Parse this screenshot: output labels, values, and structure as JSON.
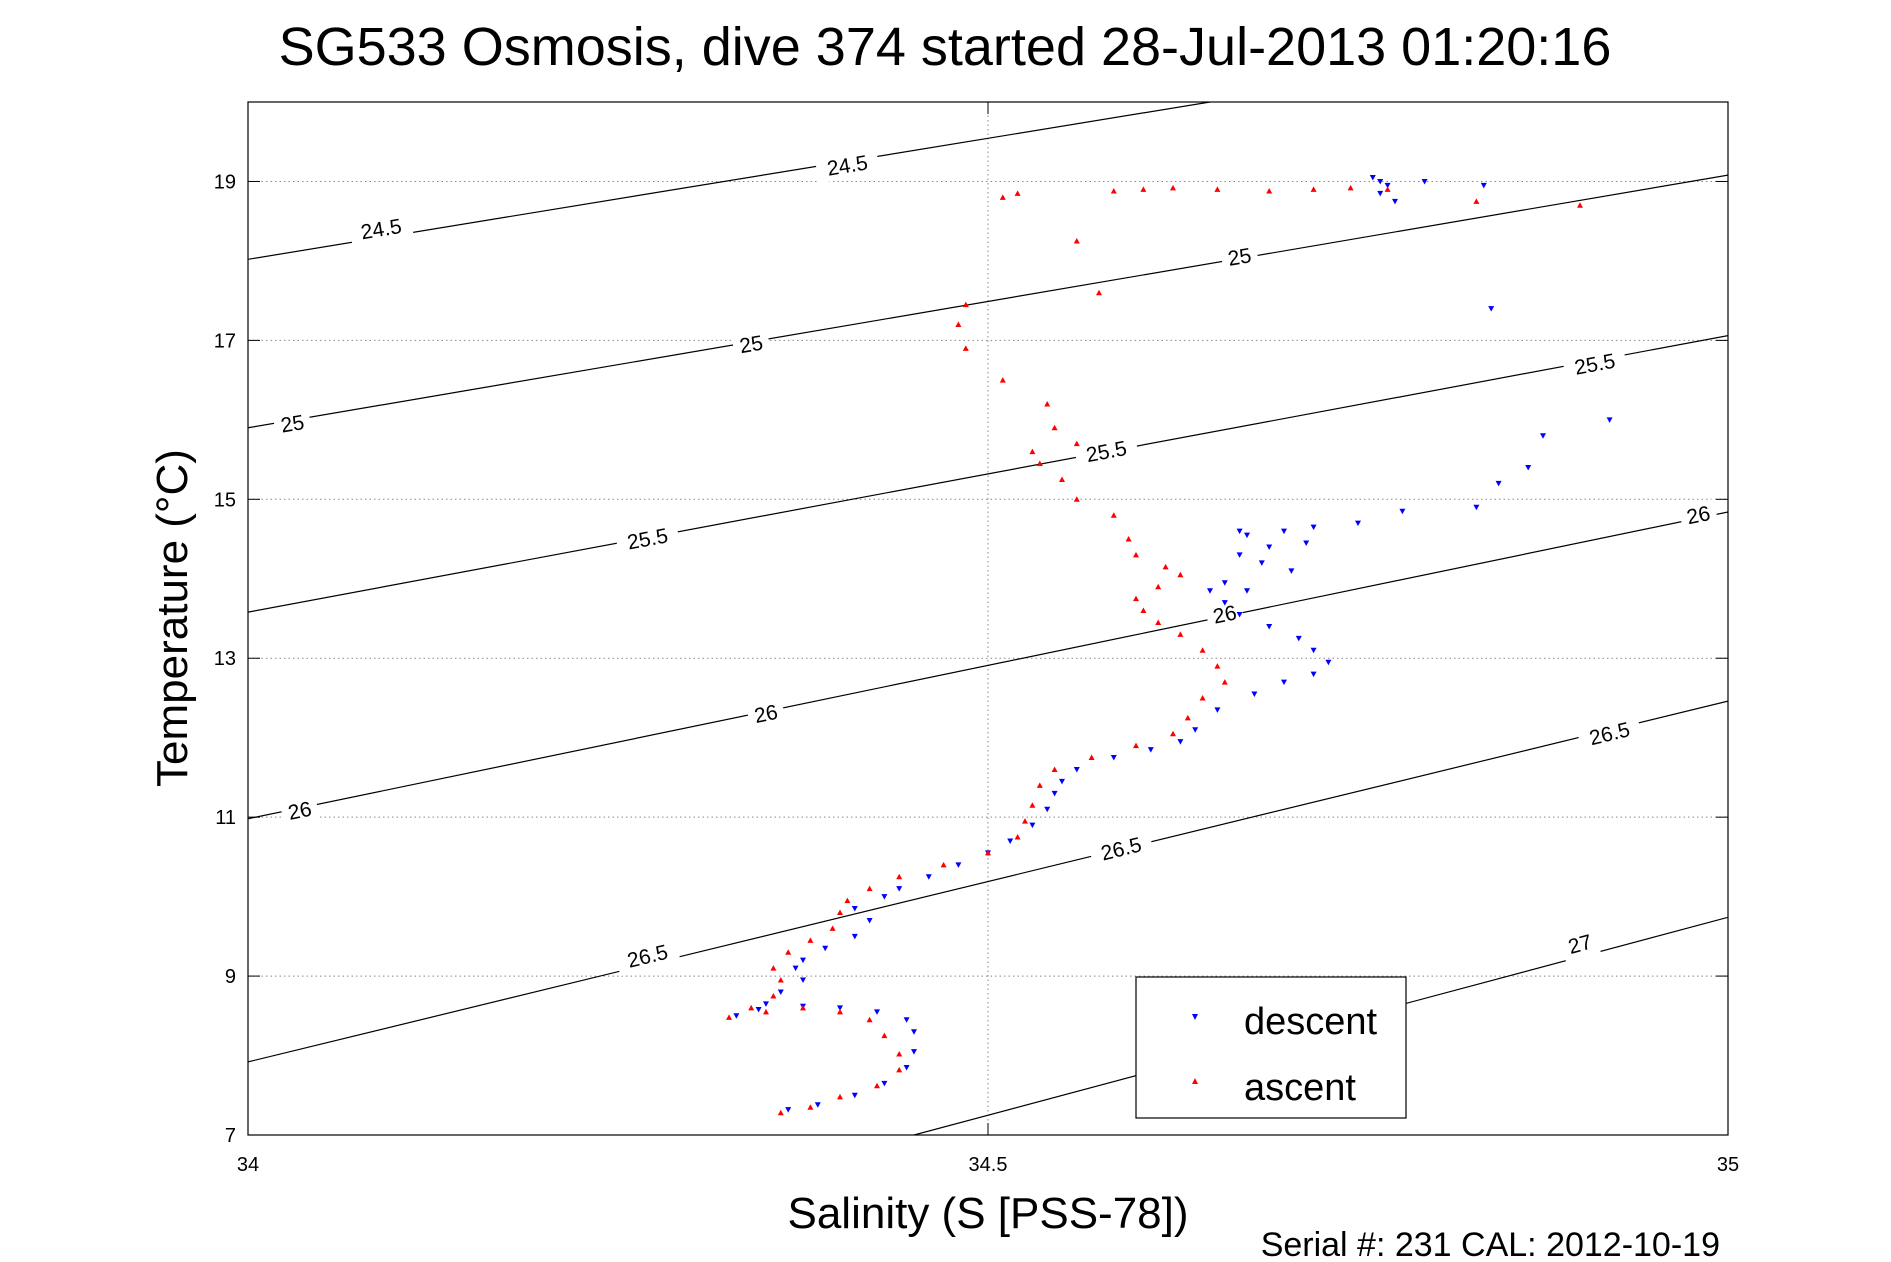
{
  "chart_data": {
    "type": "scatter",
    "title": "SG533 Osmosis, dive 374 started 28-Jul-2013 01:20:16",
    "xlabel": "Salinity (S [PSS-78])",
    "ylabel": "Temperature (°C)",
    "xlim": [
      34,
      35
    ],
    "ylim": [
      7,
      20
    ],
    "x_ticks": [
      34,
      34.5,
      35
    ],
    "x_tick_labels": [
      "34",
      "34.5",
      "35"
    ],
    "y_ticks": [
      7,
      9,
      11,
      13,
      15,
      17,
      19
    ],
    "y_tick_labels": [
      "7",
      "9",
      "11",
      "13",
      "15",
      "17",
      "19"
    ],
    "grid": "dotted",
    "legend": {
      "position": "bottom-right",
      "entries": [
        "descent",
        "ascent"
      ]
    },
    "footer": "Serial #: 231  CAL: 2012-10-19",
    "colors": {
      "descent": "#0000ff",
      "ascent": "#ff0000",
      "contour": "#000000"
    },
    "contours": [
      {
        "level": "24.5",
        "from": [
          34.0,
          18.02
        ],
        "to": [
          34.65,
          20.0
        ],
        "labels": [
          [
            34.09,
            18.4
          ],
          [
            34.405,
            19.2
          ]
        ]
      },
      {
        "level": "25",
        "from": [
          34.0,
          15.9
        ],
        "to": [
          35.0,
          19.08
        ],
        "labels": [
          [
            34.03,
            15.95
          ],
          [
            34.34,
            16.95
          ],
          [
            34.67,
            18.05
          ]
        ]
      },
      {
        "level": "25.5",
        "from": [
          34.0,
          13.58
        ],
        "to": [
          35.0,
          17.06
        ],
        "labels": [
          [
            34.27,
            14.5
          ],
          [
            34.58,
            15.6
          ],
          [
            34.91,
            16.7
          ]
        ]
      },
      {
        "level": "26",
        "from": [
          34.0,
          10.98
        ],
        "to": [
          35.0,
          14.84
        ],
        "labels": [
          [
            34.035,
            11.08
          ],
          [
            34.35,
            12.3
          ],
          [
            34.66,
            13.55
          ],
          [
            34.98,
            14.8
          ]
        ]
      },
      {
        "level": "26.5",
        "from": [
          34.0,
          7.92
        ],
        "to": [
          35.0,
          12.46
        ],
        "labels": [
          [
            34.27,
            9.25
          ],
          [
            34.59,
            10.6
          ],
          [
            34.92,
            12.05
          ]
        ]
      },
      {
        "level": "27",
        "from": [
          34.45,
          7.0
        ],
        "to": [
          35.0,
          9.74
        ],
        "labels": [
          [
            34.9,
            9.4
          ]
        ]
      }
    ],
    "series": [
      {
        "name": "descent",
        "marker": "triangle-down",
        "points": [
          [
            34.365,
            7.32
          ],
          [
            34.385,
            7.38
          ],
          [
            34.41,
            7.5
          ],
          [
            34.43,
            7.65
          ],
          [
            34.445,
            7.85
          ],
          [
            34.45,
            8.05
          ],
          [
            34.45,
            8.3
          ],
          [
            34.445,
            8.45
          ],
          [
            34.425,
            8.55
          ],
          [
            34.4,
            8.6
          ],
          [
            34.375,
            8.62
          ],
          [
            34.345,
            8.58
          ],
          [
            34.33,
            8.5
          ],
          [
            34.35,
            8.65
          ],
          [
            34.36,
            8.8
          ],
          [
            34.375,
            8.95
          ],
          [
            34.37,
            9.1
          ],
          [
            34.375,
            9.2
          ],
          [
            34.39,
            9.35
          ],
          [
            34.41,
            9.5
          ],
          [
            34.42,
            9.7
          ],
          [
            34.41,
            9.85
          ],
          [
            34.43,
            10.0
          ],
          [
            34.44,
            10.1
          ],
          [
            34.46,
            10.25
          ],
          [
            34.48,
            10.4
          ],
          [
            34.5,
            10.55
          ],
          [
            34.515,
            10.7
          ],
          [
            34.53,
            10.9
          ],
          [
            34.54,
            11.1
          ],
          [
            34.545,
            11.3
          ],
          [
            34.55,
            11.45
          ],
          [
            34.56,
            11.6
          ],
          [
            34.585,
            11.75
          ],
          [
            34.61,
            11.85
          ],
          [
            34.63,
            11.95
          ],
          [
            34.64,
            12.1
          ],
          [
            34.655,
            12.35
          ],
          [
            34.68,
            12.55
          ],
          [
            34.7,
            12.7
          ],
          [
            34.72,
            12.8
          ],
          [
            34.73,
            12.95
          ],
          [
            34.72,
            13.1
          ],
          [
            34.71,
            13.25
          ],
          [
            34.69,
            13.4
          ],
          [
            34.67,
            13.55
          ],
          [
            34.66,
            13.7
          ],
          [
            34.65,
            13.85
          ],
          [
            34.66,
            13.95
          ],
          [
            34.675,
            13.85
          ],
          [
            34.67,
            14.3
          ],
          [
            34.67,
            14.6
          ],
          [
            34.675,
            14.55
          ],
          [
            34.685,
            14.2
          ],
          [
            34.69,
            14.4
          ],
          [
            34.7,
            14.6
          ],
          [
            34.705,
            14.1
          ],
          [
            34.715,
            14.45
          ],
          [
            34.72,
            14.65
          ],
          [
            34.75,
            14.7
          ],
          [
            34.78,
            14.85
          ],
          [
            34.83,
            14.9
          ],
          [
            34.845,
            15.2
          ],
          [
            34.865,
            15.4
          ],
          [
            34.875,
            15.8
          ],
          [
            34.92,
            16.0
          ],
          [
            34.84,
            17.4
          ],
          [
            34.835,
            18.95
          ],
          [
            34.795,
            19.0
          ],
          [
            34.76,
            19.05
          ],
          [
            34.765,
            18.85
          ],
          [
            34.77,
            18.95
          ],
          [
            34.775,
            18.75
          ],
          [
            34.765,
            19.0
          ]
        ]
      },
      {
        "name": "ascent",
        "marker": "triangle-up",
        "points": [
          [
            34.36,
            7.28
          ],
          [
            34.38,
            7.35
          ],
          [
            34.4,
            7.48
          ],
          [
            34.425,
            7.62
          ],
          [
            34.44,
            7.82
          ],
          [
            34.44,
            8.02
          ],
          [
            34.43,
            8.25
          ],
          [
            34.42,
            8.45
          ],
          [
            34.4,
            8.55
          ],
          [
            34.375,
            8.6
          ],
          [
            34.35,
            8.55
          ],
          [
            34.325,
            8.48
          ],
          [
            34.34,
            8.6
          ],
          [
            34.355,
            8.75
          ],
          [
            34.36,
            8.95
          ],
          [
            34.355,
            9.1
          ],
          [
            34.365,
            9.3
          ],
          [
            34.38,
            9.45
          ],
          [
            34.395,
            9.6
          ],
          [
            34.4,
            9.8
          ],
          [
            34.405,
            9.95
          ],
          [
            34.42,
            10.1
          ],
          [
            34.44,
            10.25
          ],
          [
            34.47,
            10.4
          ],
          [
            34.5,
            10.55
          ],
          [
            34.52,
            10.75
          ],
          [
            34.525,
            10.95
          ],
          [
            34.53,
            11.15
          ],
          [
            34.535,
            11.4
          ],
          [
            34.545,
            11.6
          ],
          [
            34.57,
            11.75
          ],
          [
            34.6,
            11.9
          ],
          [
            34.625,
            12.05
          ],
          [
            34.635,
            12.25
          ],
          [
            34.645,
            12.5
          ],
          [
            34.66,
            12.7
          ],
          [
            34.655,
            12.9
          ],
          [
            34.645,
            13.1
          ],
          [
            34.63,
            13.3
          ],
          [
            34.615,
            13.45
          ],
          [
            34.605,
            13.6
          ],
          [
            34.6,
            13.75
          ],
          [
            34.615,
            13.9
          ],
          [
            34.63,
            14.05
          ],
          [
            34.62,
            14.15
          ],
          [
            34.6,
            14.3
          ],
          [
            34.595,
            14.5
          ],
          [
            34.585,
            14.8
          ],
          [
            34.56,
            15.0
          ],
          [
            34.55,
            15.25
          ],
          [
            34.535,
            15.45
          ],
          [
            34.53,
            15.6
          ],
          [
            34.56,
            15.7
          ],
          [
            34.545,
            15.9
          ],
          [
            34.54,
            16.2
          ],
          [
            34.51,
            16.5
          ],
          [
            34.485,
            16.9
          ],
          [
            34.48,
            17.2
          ],
          [
            34.485,
            17.45
          ],
          [
            34.575,
            17.6
          ],
          [
            34.56,
            18.25
          ],
          [
            34.51,
            18.8
          ],
          [
            34.52,
            18.85
          ],
          [
            34.585,
            18.88
          ],
          [
            34.605,
            18.9
          ],
          [
            34.625,
            18.92
          ],
          [
            34.655,
            18.9
          ],
          [
            34.69,
            18.88
          ],
          [
            34.72,
            18.9
          ],
          [
            34.745,
            18.92
          ],
          [
            34.77,
            18.9
          ],
          [
            34.83,
            18.75
          ],
          [
            34.9,
            18.7
          ]
        ]
      }
    ]
  }
}
